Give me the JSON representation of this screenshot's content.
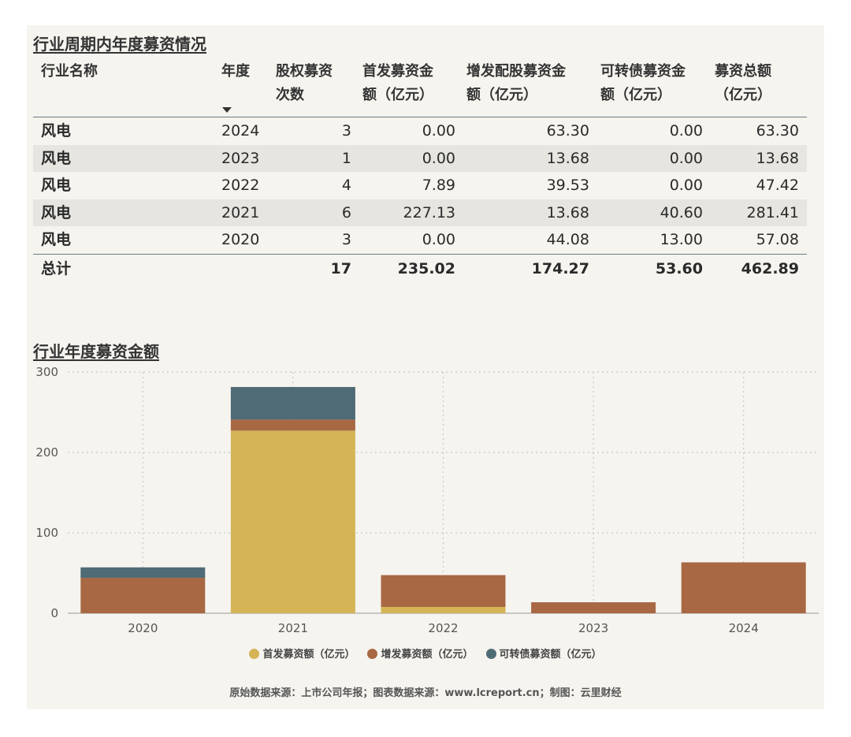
{
  "table_title": "行业周期内年度募资情况",
  "chart_title": "行业年度募资金额",
  "table": {
    "headers": {
      "name": [
        "行业名称"
      ],
      "year": [
        "年度"
      ],
      "count": [
        "股权募资",
        "次数"
      ],
      "ipo": [
        "首发募资金",
        "额（亿元）"
      ],
      "follow": [
        "增发配股募资金",
        "额（亿元）"
      ],
      "convert": [
        "可转债募资金",
        "额（亿元）"
      ],
      "total": [
        "募资总额",
        "（亿元）"
      ]
    },
    "rows": [
      {
        "name": "风电",
        "year": "2024",
        "count": "3",
        "ipo": "0.00",
        "follow": "63.30",
        "convert": "0.00",
        "total": "63.30"
      },
      {
        "name": "风电",
        "year": "2023",
        "count": "1",
        "ipo": "0.00",
        "follow": "13.68",
        "convert": "0.00",
        "total": "13.68"
      },
      {
        "name": "风电",
        "year": "2022",
        "count": "4",
        "ipo": "7.89",
        "follow": "39.53",
        "convert": "0.00",
        "total": "47.42"
      },
      {
        "name": "风电",
        "year": "2021",
        "count": "6",
        "ipo": "227.13",
        "follow": "13.68",
        "convert": "40.60",
        "total": "281.41"
      },
      {
        "name": "风电",
        "year": "2020",
        "count": "3",
        "ipo": "0.00",
        "follow": "44.08",
        "convert": "13.00",
        "total": "57.08"
      }
    ],
    "total_row": {
      "name": "总计",
      "count": "17",
      "ipo": "235.02",
      "follow": "174.27",
      "convert": "53.60",
      "total": "462.89"
    }
  },
  "chart_data": {
    "type": "bar",
    "stacked": true,
    "categories": [
      "2020",
      "2021",
      "2022",
      "2023",
      "2024"
    ],
    "series": [
      {
        "name": "首发募资额（亿元）",
        "color": "#d4b455",
        "values": [
          0.0,
          227.13,
          7.89,
          0.0,
          0.0
        ]
      },
      {
        "name": "增发募资额（亿元）",
        "color": "#a86844",
        "values": [
          44.08,
          13.68,
          39.53,
          13.68,
          63.3
        ]
      },
      {
        "name": "可转债募资额（亿元）",
        "color": "#4e6b76",
        "values": [
          13.0,
          40.6,
          0.0,
          0.0,
          0.0
        ]
      }
    ],
    "ylim": [
      0,
      300
    ],
    "yticks": [
      "0",
      "100",
      "200",
      "300"
    ],
    "grid": true,
    "legend": "bottom"
  },
  "source": "原始数据来源：上市公司年报；图表数据来源：www.lcreport.cn；制图：云里财经"
}
